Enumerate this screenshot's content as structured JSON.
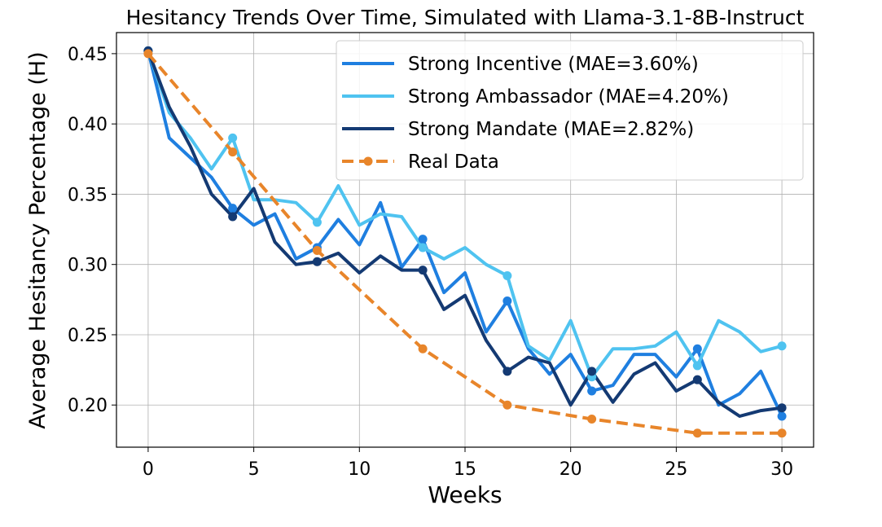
{
  "chart_data": {
    "type": "line",
    "title": "Hesitancy Trends Over Time, Simulated with Llama-3.1-8B-Instruct",
    "xlabel": "Weeks",
    "ylabel": "Average Hesitancy Percentage (H)",
    "xlim": [
      -1.5,
      31.5
    ],
    "ylim": [
      0.17,
      0.465
    ],
    "xticks": [
      0,
      5,
      10,
      15,
      20,
      25,
      30
    ],
    "xtick_labels": [
      "0",
      "5",
      "10",
      "15",
      "20",
      "25",
      "30"
    ],
    "yticks": [
      0.2,
      0.25,
      0.3,
      0.35,
      0.4,
      0.45
    ],
    "ytick_labels": [
      "0.20",
      "0.25",
      "0.30",
      "0.35",
      "0.40",
      "0.45"
    ],
    "grid": true,
    "legend_position": "top-right",
    "series": [
      {
        "name": "Strong Incentive (MAE=3.60%)",
        "color": "#1f7fe0",
        "style": "solid",
        "x": [
          0,
          1,
          2,
          3,
          4,
          5,
          6,
          7,
          8,
          9,
          10,
          11,
          12,
          13,
          14,
          15,
          16,
          17,
          18,
          19,
          20,
          21,
          22,
          23,
          24,
          25,
          26,
          27,
          28,
          29,
          30
        ],
        "y": [
          0.452,
          0.39,
          0.376,
          0.362,
          0.34,
          0.328,
          0.336,
          0.304,
          0.312,
          0.332,
          0.314,
          0.344,
          0.298,
          0.318,
          0.28,
          0.294,
          0.252,
          0.274,
          0.24,
          0.222,
          0.236,
          0.21,
          0.214,
          0.236,
          0.236,
          0.22,
          0.24,
          0.2,
          0.208,
          0.224,
          0.192
        ],
        "markers_x": [
          0,
          4,
          8,
          13,
          17,
          21,
          26,
          30
        ]
      },
      {
        "name": "Strong Ambassador (MAE=4.20%)",
        "color": "#4fc3f0",
        "style": "solid",
        "x": [
          0,
          1,
          2,
          3,
          4,
          5,
          6,
          7,
          8,
          9,
          10,
          11,
          12,
          13,
          14,
          15,
          16,
          17,
          18,
          19,
          20,
          21,
          22,
          23,
          24,
          25,
          26,
          27,
          28,
          29,
          30
        ],
        "y": [
          0.452,
          0.408,
          0.39,
          0.368,
          0.39,
          0.346,
          0.346,
          0.344,
          0.33,
          0.356,
          0.328,
          0.336,
          0.334,
          0.312,
          0.304,
          0.312,
          0.3,
          0.292,
          0.242,
          0.232,
          0.26,
          0.22,
          0.24,
          0.24,
          0.242,
          0.252,
          0.228,
          0.26,
          0.252,
          0.238,
          0.242
        ],
        "markers_x": [
          0,
          4,
          8,
          13,
          17,
          21,
          26,
          30
        ]
      },
      {
        "name": "Strong Mandate (MAE=2.82%)",
        "color": "#143a73",
        "style": "solid",
        "x": [
          0,
          1,
          2,
          3,
          4,
          5,
          6,
          7,
          8,
          9,
          10,
          11,
          12,
          13,
          14,
          15,
          16,
          17,
          18,
          19,
          20,
          21,
          22,
          23,
          24,
          25,
          26,
          27,
          28,
          29,
          30
        ],
        "y": [
          0.452,
          0.412,
          0.384,
          0.35,
          0.334,
          0.354,
          0.316,
          0.3,
          0.302,
          0.308,
          0.294,
          0.306,
          0.296,
          0.296,
          0.268,
          0.278,
          0.246,
          0.224,
          0.234,
          0.23,
          0.2,
          0.224,
          0.202,
          0.222,
          0.23,
          0.21,
          0.218,
          0.202,
          0.192,
          0.196,
          0.198
        ],
        "markers_x": [
          0,
          4,
          8,
          13,
          17,
          21,
          26,
          30
        ]
      },
      {
        "name": "Real Data",
        "color": "#e8852a",
        "style": "dashed",
        "x": [
          0,
          4,
          8,
          13,
          17,
          21,
          26,
          30
        ],
        "y": [
          0.45,
          0.38,
          0.31,
          0.24,
          0.2,
          0.19,
          0.18,
          0.18
        ],
        "markers_x": [
          0,
          4,
          8,
          13,
          17,
          21,
          26,
          30
        ]
      }
    ]
  }
}
